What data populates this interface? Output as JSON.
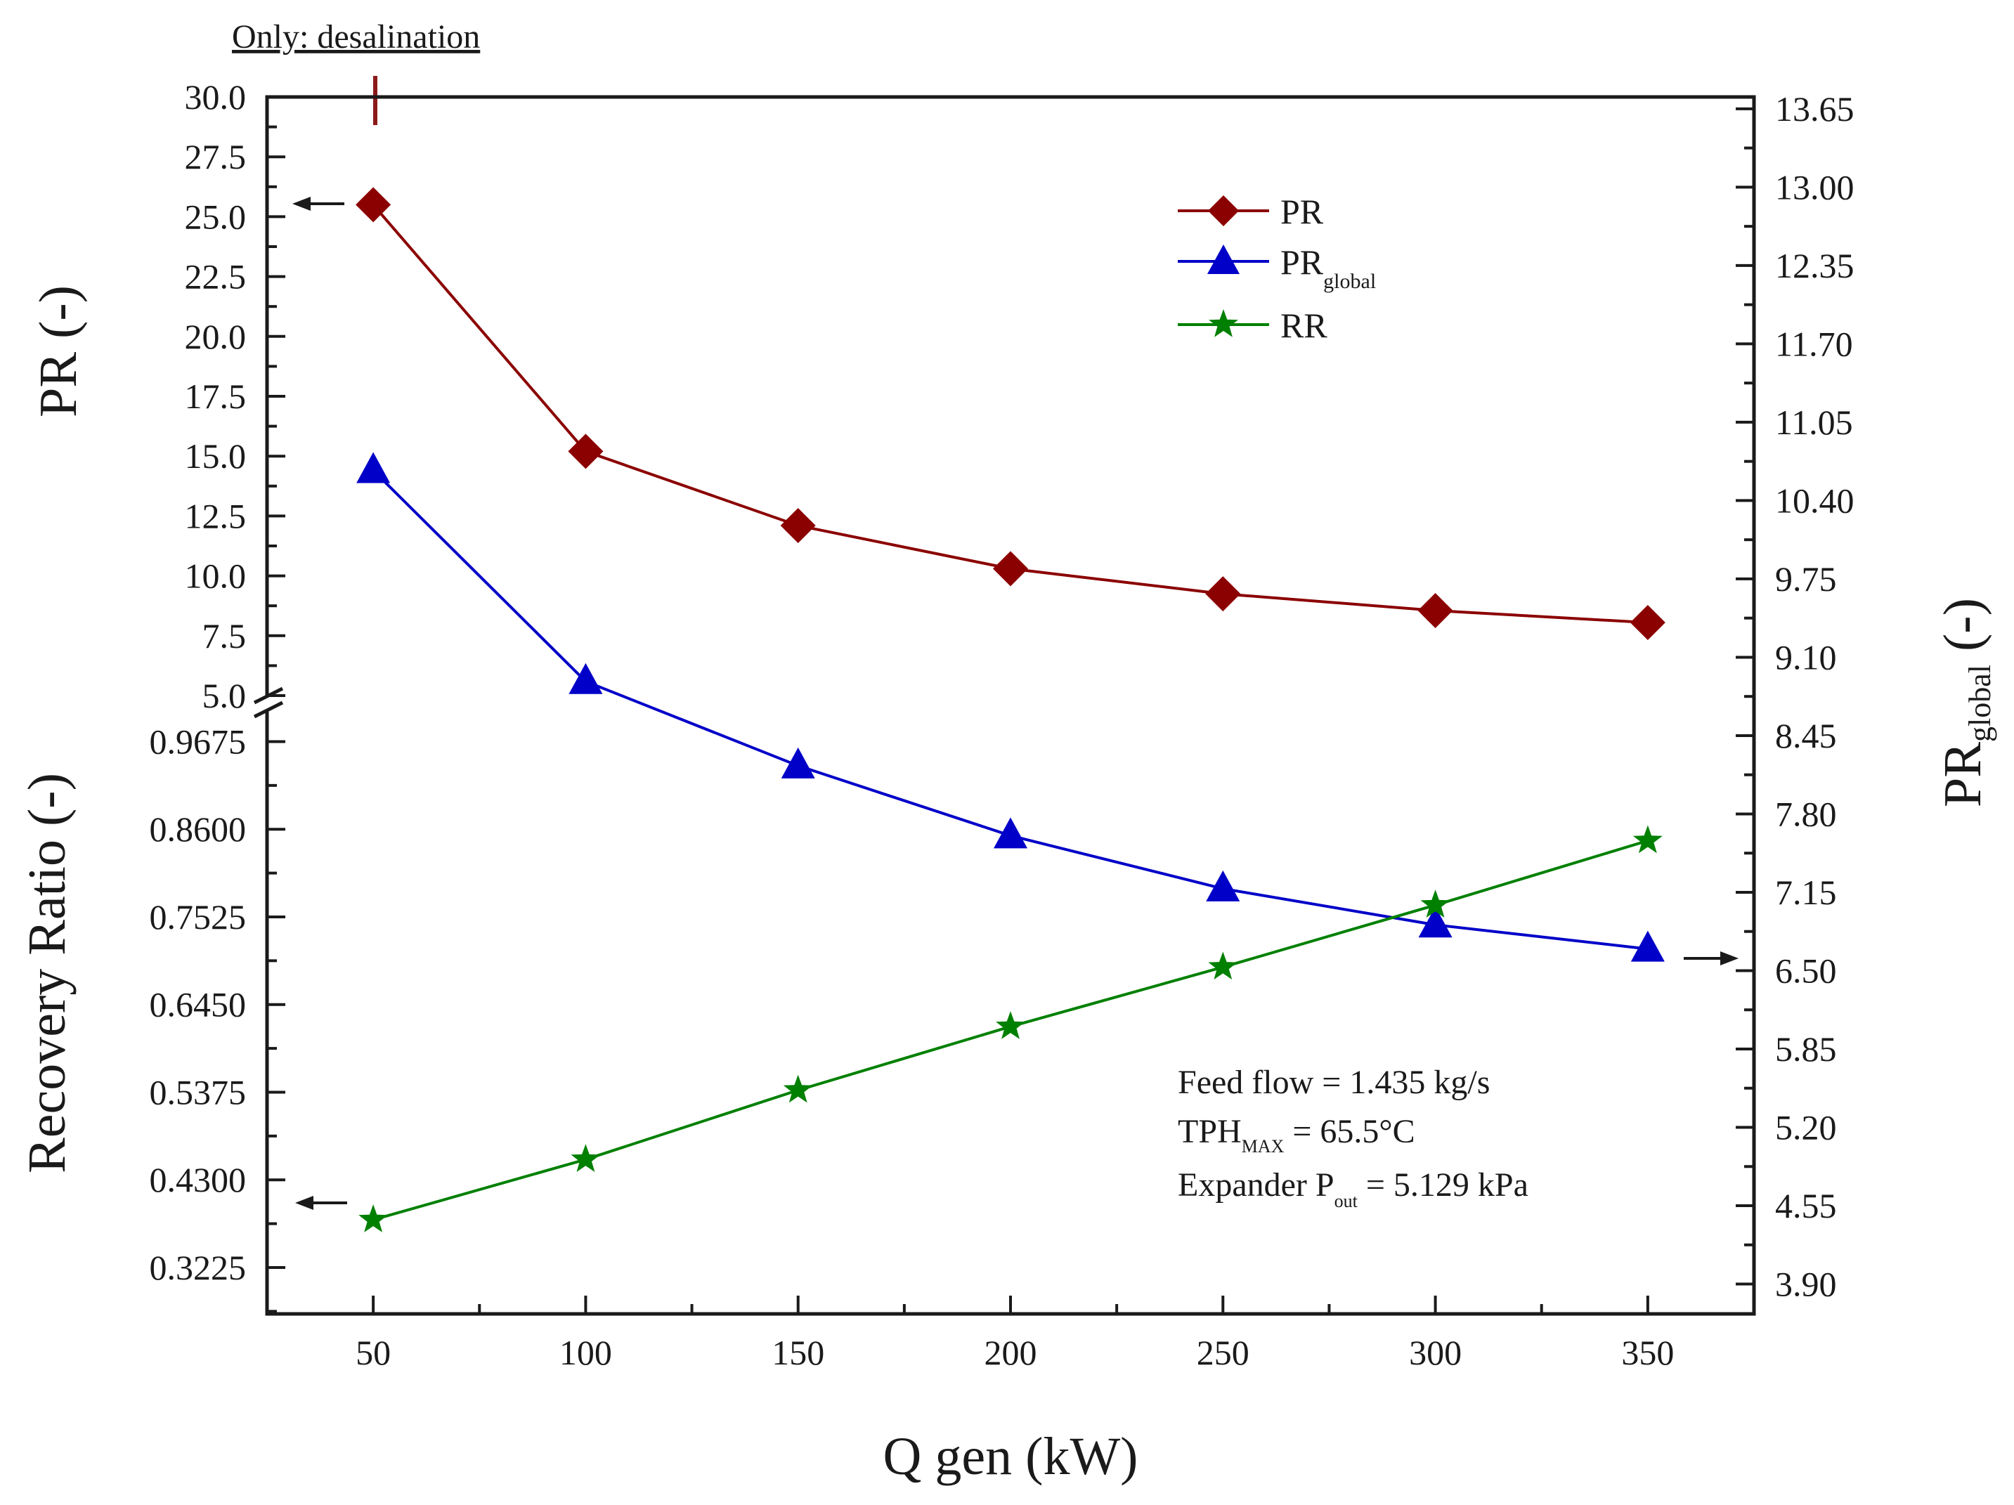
{
  "colors": {
    "pr": "#8b0000",
    "pr_global": "#0000c8",
    "rr": "#008000",
    "axis": "#1a1a1a",
    "marker_line": "#8b1a1a"
  },
  "chart_data": {
    "type": "line",
    "x": [
      50,
      100,
      150,
      200,
      250,
      300,
      350
    ],
    "xlabel": "Q gen (kW)",
    "x_ticks": [
      "50",
      "100",
      "150",
      "200",
      "250",
      "300",
      "350"
    ],
    "xlim": [
      25,
      375
    ],
    "left_axis_upper": {
      "label": "PR (-)",
      "ylim": [
        5.0,
        30.0
      ],
      "ticks": [
        "30.0",
        "27.5",
        "25.0",
        "22.5",
        "20.0",
        "17.5",
        "15.0",
        "12.5",
        "10.0",
        "7.5",
        "5.0"
      ]
    },
    "left_axis_lower": {
      "label": "Recovery Ratio (-)",
      "ylim": [
        0.2656,
        1.0067
      ],
      "ticks": [
        "0.9675",
        "0.8600",
        "0.7525",
        "0.6450",
        "0.5375",
        "0.4300",
        "0.3225"
      ]
    },
    "right_axis": {
      "label_main": "PR",
      "label_sub": "global",
      "label_suffix": " (-)",
      "ylim": [
        3.6525,
        13.7483
      ],
      "ticks": [
        "13.65",
        "13.00",
        "12.35",
        "11.70",
        "11.05",
        "10.40",
        "9.75",
        "9.10",
        "8.45",
        "7.80",
        "7.15",
        "6.50",
        "5.85",
        "5.20",
        "4.55",
        "3.90"
      ]
    },
    "series": [
      {
        "name": "PR",
        "axis": "left_upper",
        "marker": "diamond",
        "values": [
          25.5,
          15.2,
          12.1,
          10.3,
          9.25,
          8.55,
          8.05
        ]
      },
      {
        "name": "PR_global",
        "axis": "right",
        "marker": "triangle",
        "values": [
          10.65,
          8.9,
          8.2,
          7.62,
          7.18,
          6.88,
          6.68
        ]
      },
      {
        "name": "RR",
        "axis": "left_lower",
        "marker": "star",
        "values": [
          0.381,
          0.455,
          0.54,
          0.618,
          0.691,
          0.767,
          0.846
        ]
      }
    ],
    "legend": [
      {
        "main": "PR",
        "sub": ""
      },
      {
        "main": "PR",
        "sub": "global"
      },
      {
        "main": "RR",
        "sub": ""
      }
    ],
    "legend_position": "top-right",
    "top_annotation": "Only: desalination",
    "annotations": {
      "line1": "Feed flow = 1.435 kg/s",
      "line2_main": "TPH",
      "line2_sub": "MAX",
      "line2_rest": " = 65.5°C",
      "line3_main": "Expander P",
      "line3_sub": "out",
      "line3_rest": " = 5.129 kPa"
    },
    "grid": false
  }
}
